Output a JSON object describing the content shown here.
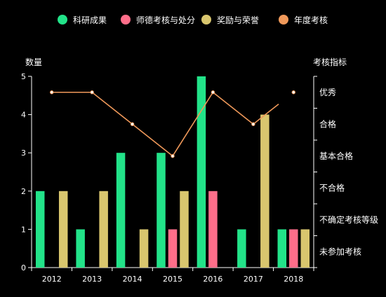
{
  "chart_data": {
    "type": "bar",
    "categories": [
      "2012",
      "2013",
      "2014",
      "2015",
      "2016",
      "2017",
      "2018"
    ],
    "legend_placement": "top",
    "grid": false,
    "y_left": {
      "label": "数量",
      "min": 0,
      "max": 5,
      "ticks": [
        "0",
        "1",
        "2",
        "3",
        "4",
        "5"
      ]
    },
    "y_right": {
      "label": "考核指标",
      "ticks": [
        "未参加考核",
        "不确定考核等级",
        "不合格",
        "基本合格",
        "合格",
        "优秀"
      ]
    },
    "series": [
      {
        "name": "科研成果",
        "type": "bar",
        "color": "#22e389",
        "values": [
          2,
          1,
          3,
          3,
          5,
          1,
          1
        ]
      },
      {
        "name": "师德考核与处分",
        "type": "bar",
        "color": "#ff6e8a",
        "values": [
          0,
          0,
          0,
          1,
          2,
          0,
          1
        ]
      },
      {
        "name": "奖励与荣誉",
        "type": "bar",
        "color": "#d9c66e",
        "values": [
          2,
          2,
          1,
          2,
          0,
          4,
          1
        ]
      },
      {
        "name": "年度考核",
        "type": "line",
        "color": "#f0995a",
        "axis": "right",
        "values": [
          "优秀",
          "优秀",
          "合格",
          "基本合格",
          "优秀",
          "合格",
          "优秀"
        ]
      }
    ]
  }
}
